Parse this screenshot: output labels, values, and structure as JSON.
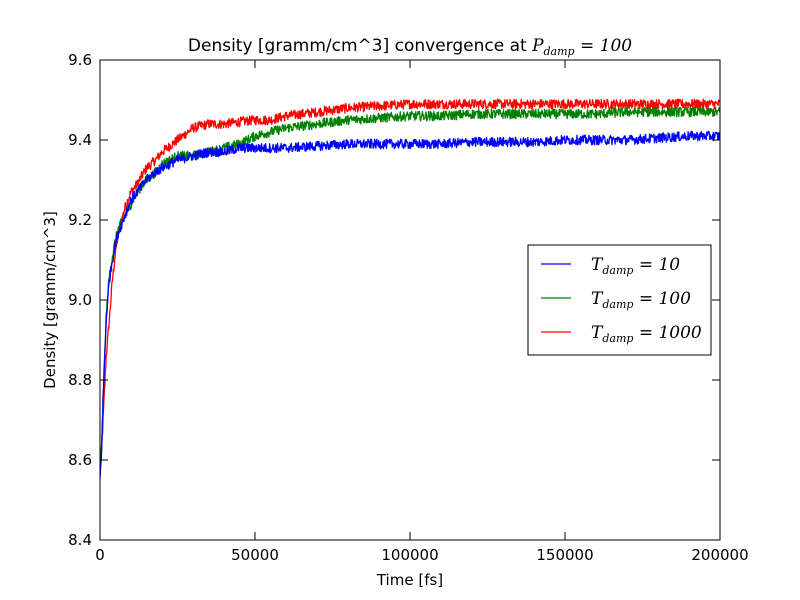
{
  "chart_data": {
    "type": "line",
    "title": "Density [gramm/cm^3] convergence at ",
    "title_math": "P_damp = 100",
    "xlabel": "Time [fs]",
    "ylabel": "Density [gramm/cm^3]",
    "xlim": [
      0,
      200000
    ],
    "ylim": [
      8.4,
      9.6
    ],
    "xticks": [
      0,
      50000,
      100000,
      150000,
      200000
    ],
    "xtick_labels": [
      "0",
      "50000",
      "100000",
      "150000",
      "200000"
    ],
    "yticks": [
      8.4,
      8.6,
      8.8,
      9.0,
      9.2,
      9.4,
      9.6
    ],
    "ytick_labels": [
      "8.4",
      "8.6",
      "8.8",
      "9.0",
      "9.2",
      "9.4",
      "9.6"
    ],
    "grid": false,
    "legend_position": "center-right",
    "noise_amplitude": 0.012,
    "series": [
      {
        "name": "T_damp = 10",
        "name_parts": {
          "base": "T",
          "sub": "damp",
          "rest": " = 10"
        },
        "color": "#0000ff",
        "x": [
          0,
          500,
          1000,
          2000,
          3000,
          4000,
          5000,
          6000,
          8000,
          10000,
          12000,
          15000,
          18000,
          20000,
          25000,
          30000,
          35000,
          40000,
          45000,
          50000,
          55000,
          60000,
          70000,
          80000,
          90000,
          100000,
          110000,
          120000,
          130000,
          140000,
          150000,
          160000,
          170000,
          180000,
          190000,
          200000
        ],
        "y": [
          8.55,
          8.62,
          8.75,
          8.95,
          9.05,
          9.1,
          9.14,
          9.17,
          9.21,
          9.25,
          9.27,
          9.3,
          9.32,
          9.33,
          9.35,
          9.36,
          9.37,
          9.37,
          9.38,
          9.38,
          9.38,
          9.38,
          9.385,
          9.39,
          9.39,
          9.39,
          9.39,
          9.395,
          9.395,
          9.395,
          9.4,
          9.4,
          9.4,
          9.405,
          9.41,
          9.41
        ]
      },
      {
        "name": "T_damp = 100",
        "name_parts": {
          "base": "T",
          "sub": "damp",
          "rest": " = 100"
        },
        "color": "#008000",
        "x": [
          0,
          500,
          1000,
          2000,
          3000,
          4000,
          5000,
          6000,
          8000,
          10000,
          12000,
          15000,
          18000,
          20000,
          25000,
          30000,
          35000,
          40000,
          45000,
          50000,
          55000,
          60000,
          70000,
          80000,
          90000,
          100000,
          110000,
          120000,
          130000,
          140000,
          150000,
          160000,
          170000,
          180000,
          190000,
          200000
        ],
        "y": [
          8.57,
          8.63,
          8.76,
          8.96,
          9.06,
          9.11,
          9.15,
          9.18,
          9.21,
          9.24,
          9.27,
          9.3,
          9.32,
          9.34,
          9.36,
          9.36,
          9.37,
          9.38,
          9.39,
          9.41,
          9.42,
          9.43,
          9.44,
          9.45,
          9.455,
          9.46,
          9.46,
          9.465,
          9.465,
          9.465,
          9.465,
          9.465,
          9.47,
          9.47,
          9.47,
          9.47
        ]
      },
      {
        "name": "T_damp = 1000",
        "name_parts": {
          "base": "T",
          "sub": "damp",
          "rest": " = 1000"
        },
        "color": "#ff0000",
        "x": [
          0,
          500,
          1000,
          2000,
          3000,
          4000,
          5000,
          6000,
          8000,
          10000,
          12000,
          15000,
          18000,
          20000,
          25000,
          30000,
          35000,
          40000,
          45000,
          50000,
          55000,
          60000,
          70000,
          80000,
          90000,
          100000,
          110000,
          120000,
          130000,
          140000,
          150000,
          160000,
          170000,
          180000,
          190000,
          200000
        ],
        "y": [
          8.58,
          8.62,
          8.7,
          8.86,
          8.95,
          9.05,
          9.12,
          9.17,
          9.23,
          9.27,
          9.29,
          9.33,
          9.35,
          9.37,
          9.4,
          9.43,
          9.44,
          9.44,
          9.445,
          9.45,
          9.45,
          9.46,
          9.47,
          9.48,
          9.485,
          9.49,
          9.49,
          9.49,
          9.49,
          9.49,
          9.49,
          9.49,
          9.49,
          9.49,
          9.49,
          9.49
        ]
      }
    ]
  }
}
